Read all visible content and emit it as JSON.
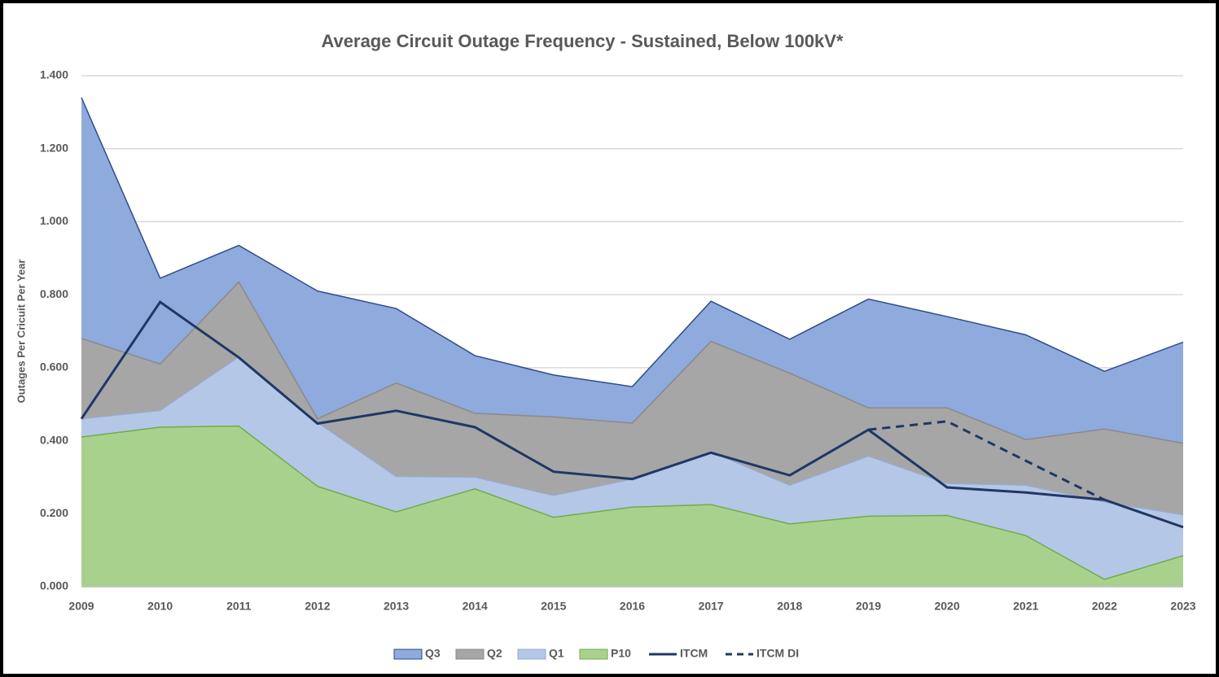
{
  "chart_data": {
    "type": "area",
    "title": "Average Circuit Outage Frequency - Sustained, Below 100kV*",
    "y_label": "Outages Per Cricuit Per Year",
    "categories": [
      "2009",
      "2010",
      "2011",
      "2012",
      "2013",
      "2014",
      "2015",
      "2016",
      "2017",
      "2018",
      "2019",
      "2020",
      "2021",
      "2022",
      "2023"
    ],
    "series": [
      {
        "name": "Q3",
        "style": "area",
        "color": "#8faadc",
        "edge": "#2f4d8a",
        "values": [
          1.34,
          0.845,
          0.935,
          0.81,
          0.762,
          0.633,
          0.58,
          0.548,
          0.782,
          0.678,
          0.788,
          0.74,
          0.69,
          0.59,
          0.67
        ]
      },
      {
        "name": "Q2",
        "style": "area",
        "color": "#a6a6a6",
        "edge": "#8a8a8a",
        "values": [
          0.68,
          0.61,
          0.835,
          0.46,
          0.558,
          0.475,
          0.465,
          0.448,
          0.672,
          0.585,
          0.49,
          0.49,
          0.403,
          0.432,
          0.393
        ]
      },
      {
        "name": "Q1",
        "style": "area",
        "color": "#b4c7e7",
        "edge": "#9aaac8",
        "values": [
          0.46,
          0.483,
          0.63,
          0.45,
          0.302,
          0.3,
          0.25,
          0.295,
          0.37,
          0.278,
          0.358,
          0.283,
          0.278,
          0.232,
          0.197
        ]
      },
      {
        "name": "P10",
        "style": "area",
        "color": "#a9d18e",
        "edge": "#70ad47",
        "values": [
          0.41,
          0.437,
          0.44,
          0.275,
          0.205,
          0.268,
          0.19,
          0.218,
          0.225,
          0.172,
          0.193,
          0.195,
          0.14,
          0.02,
          0.085
        ]
      },
      {
        "name": "ITCM",
        "style": "line",
        "color": "#1f3864",
        "dashed": false,
        "values": [
          0.46,
          0.78,
          0.628,
          0.447,
          0.482,
          0.437,
          0.315,
          0.295,
          0.367,
          0.305,
          0.43,
          0.272,
          0.258,
          0.238,
          0.163
        ]
      },
      {
        "name": "ITCM DI",
        "style": "line",
        "color": "#1f3864",
        "dashed": true,
        "values": [
          null,
          null,
          null,
          null,
          null,
          null,
          null,
          null,
          null,
          null,
          0.43,
          0.453,
          0.345,
          0.238,
          null
        ]
      }
    ],
    "ylim": [
      0,
      1.4
    ],
    "yticks": [
      {
        "value": 0,
        "label": "0.000"
      },
      {
        "value": 0.2,
        "label": "0.200"
      },
      {
        "value": 0.4,
        "label": "0.400"
      },
      {
        "value": 0.6,
        "label": "0.600"
      },
      {
        "value": 0.8,
        "label": "0.800"
      },
      {
        "value": 1.0,
        "label": "1.000"
      },
      {
        "value": 1.2,
        "label": "1.200"
      },
      {
        "value": 1.4,
        "label": "1.400"
      }
    ],
    "grid": true,
    "legend": "bottom"
  }
}
